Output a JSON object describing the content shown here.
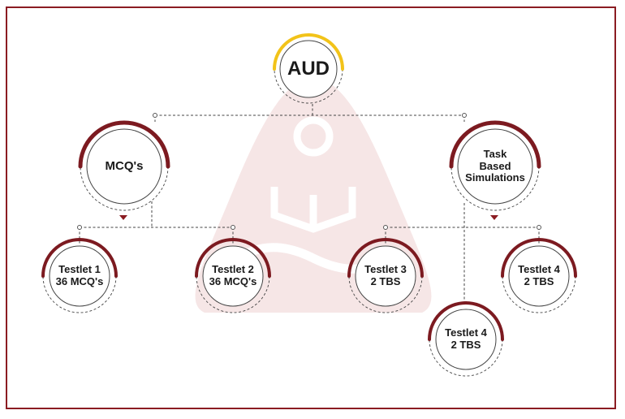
{
  "title": "AUD",
  "colors": {
    "frame": "#8b1c22",
    "accent": "#f2c319",
    "ring": "#7c1a20",
    "watermark": "#f6e6e6"
  },
  "nodes": {
    "aud": {
      "lines": [
        "AUD"
      ]
    },
    "mcq": {
      "lines": [
        "MCQ's"
      ]
    },
    "tbs": {
      "lines": [
        "Task",
        "Based",
        "Simulations"
      ]
    },
    "t1": {
      "lines": [
        "Testlet 1",
        "36 MCQ's"
      ]
    },
    "t2": {
      "lines": [
        "Testlet 2",
        "36 MCQ's"
      ]
    },
    "t3": {
      "lines": [
        "Testlet 3",
        "2 TBS"
      ]
    },
    "t4a": {
      "lines": [
        "Testlet 4",
        "2 TBS"
      ]
    },
    "t4b": {
      "lines": [
        "Testlet 4",
        "2 TBS"
      ]
    }
  }
}
